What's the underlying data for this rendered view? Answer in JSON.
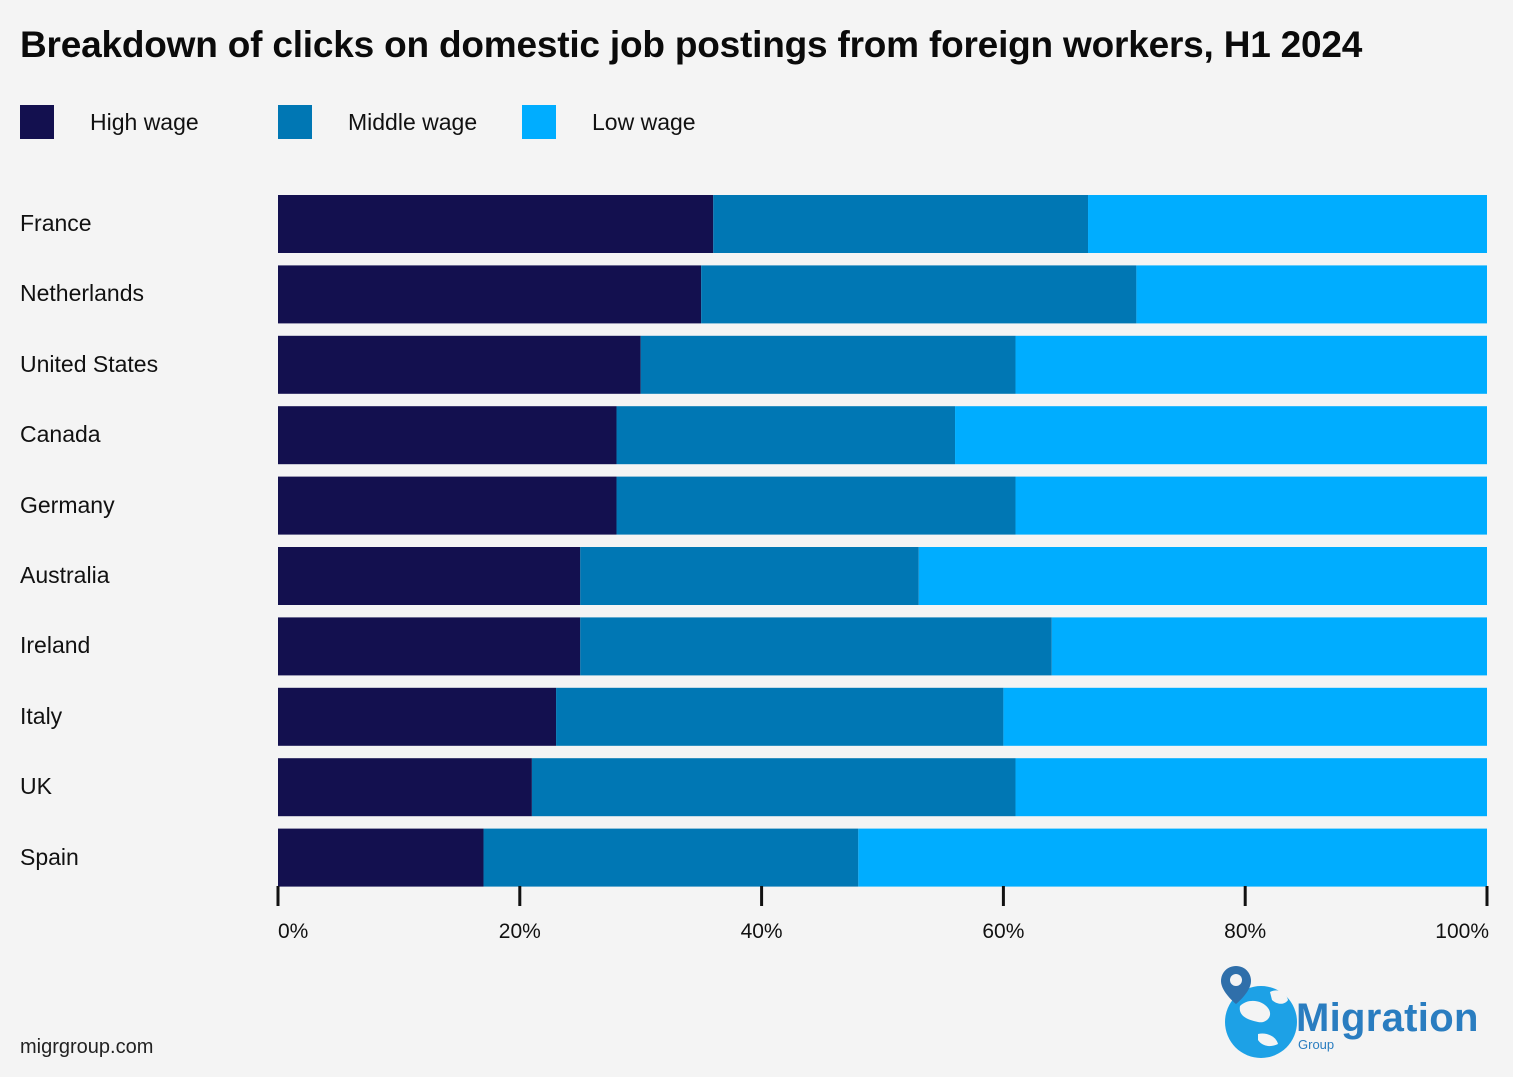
{
  "title": "Breakdown of clicks on domestic job postings from foreign workers, H1 2024",
  "footer_url": "migrgroup.com",
  "logo": {
    "name": "Migration",
    "sub": "Group"
  },
  "legend": [
    {
      "label": "High wage",
      "color": "#13104f"
    },
    {
      "label": "Middle wage",
      "color": "#0077b4"
    },
    {
      "label": "Low wage",
      "color": "#00adff"
    }
  ],
  "chart_data": {
    "type": "bar",
    "orientation": "horizontal",
    "stacked": true,
    "categories": [
      "France",
      "Netherlands",
      "United States",
      "Canada",
      "Germany",
      "Australia",
      "Ireland",
      "Italy",
      "UK",
      "Spain"
    ],
    "series": [
      {
        "name": "High wage",
        "color": "#13104f",
        "values": [
          36,
          35,
          30,
          28,
          28,
          25,
          25,
          23,
          21,
          17
        ]
      },
      {
        "name": "Middle wage",
        "color": "#0077b4",
        "values": [
          31,
          36,
          31,
          28,
          33,
          28,
          39,
          37,
          40,
          31
        ]
      },
      {
        "name": "Low wage",
        "color": "#00adff",
        "values": [
          33,
          29,
          39,
          44,
          39,
          47,
          36,
          40,
          39,
          52
        ]
      }
    ],
    "xticks": [
      "0%",
      "20%",
      "40%",
      "60%",
      "80%",
      "100%"
    ],
    "xlim": [
      0,
      100
    ],
    "legend_position": "top-left",
    "grid": false
  }
}
